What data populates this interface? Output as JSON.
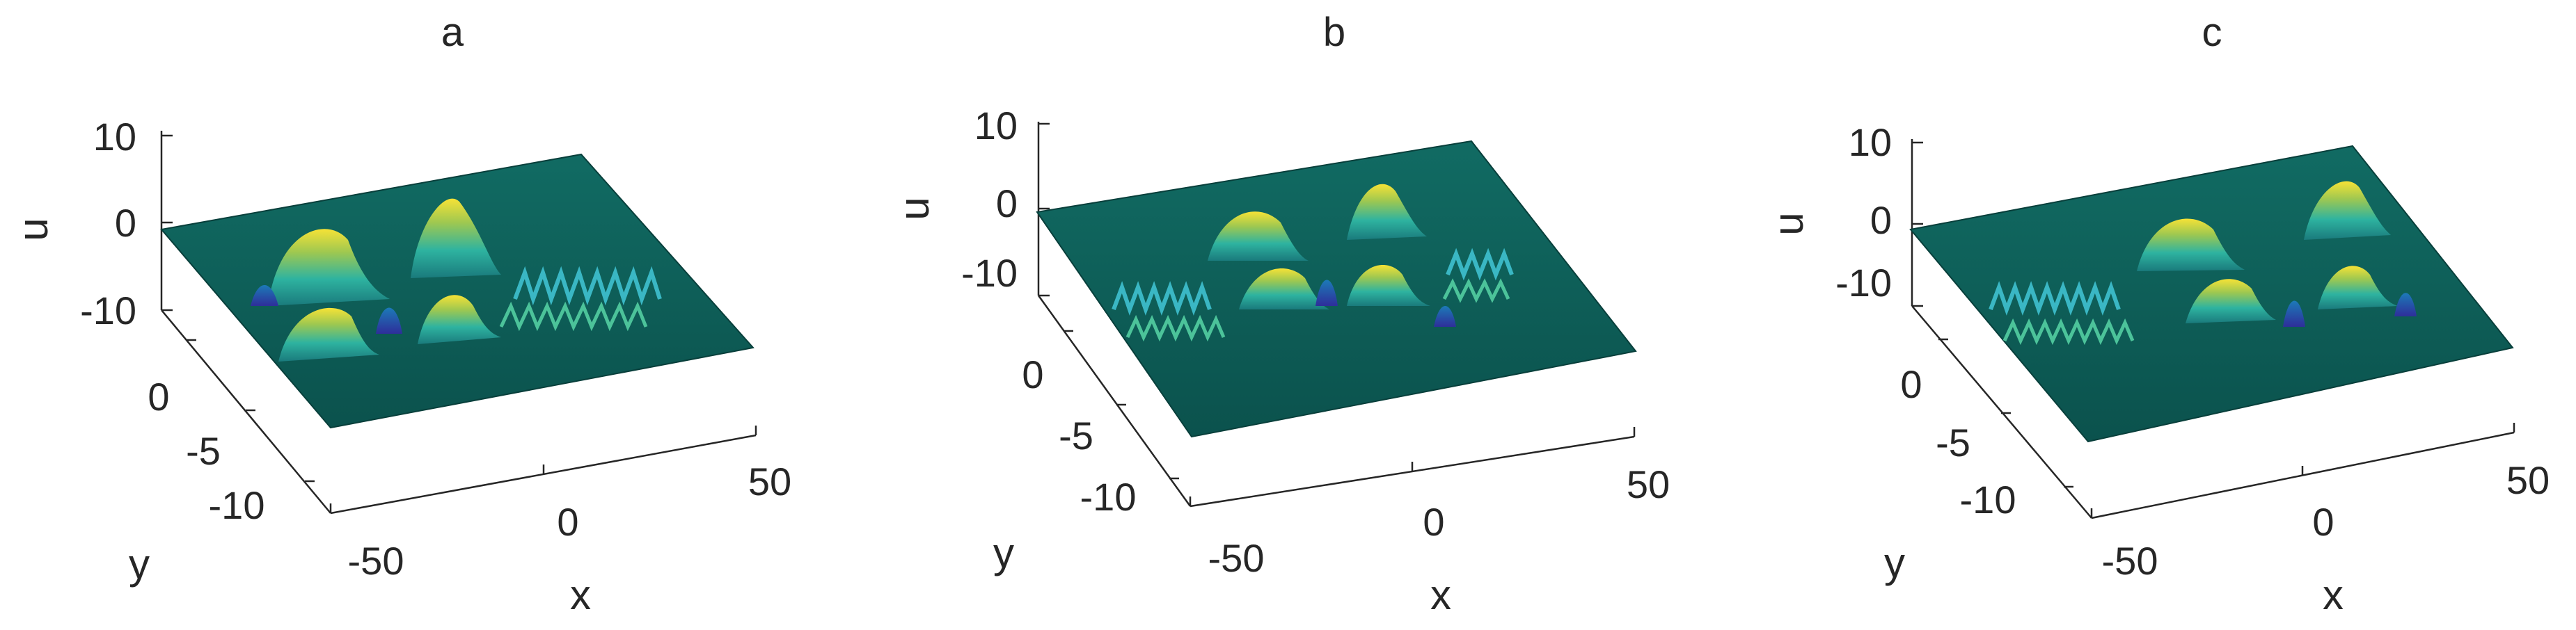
{
  "panels": [
    {
      "title": "a",
      "xlabel": "x",
      "ylabel": "y",
      "zlabel": "u",
      "xticks": [
        "-50",
        "0",
        "50"
      ],
      "yticks": [
        "0",
        "-5",
        "-10"
      ],
      "zticks": [
        "10",
        "0",
        "-10"
      ]
    },
    {
      "title": "b",
      "xlabel": "x",
      "ylabel": "y",
      "zlabel": "u",
      "xticks": [
        "-50",
        "0",
        "50"
      ],
      "yticks": [
        "0",
        "-5",
        "-10"
      ],
      "zticks": [
        "10",
        "0",
        "-10"
      ]
    },
    {
      "title": "c",
      "xlabel": "x",
      "ylabel": "y",
      "zlabel": "u",
      "xticks": [
        "-50",
        "0",
        "50"
      ],
      "yticks": [
        "0",
        "-5",
        "-10"
      ],
      "zticks": [
        "10",
        "0",
        "-10"
      ]
    }
  ],
  "chart_data": [
    {
      "type": "surface",
      "title": "a",
      "xlabel": "x",
      "ylabel": "y",
      "zlabel": "u",
      "xlim": [
        -60,
        60
      ],
      "ylim": [
        -13,
        5
      ],
      "zlim": [
        -10,
        10
      ],
      "colormap": "parula",
      "surface_color": "#0d5c56",
      "features": [
        {
          "kind": "hump",
          "x": -22,
          "y": 1.2,
          "z": 6
        },
        {
          "kind": "hump",
          "x": 2,
          "y": 1.2,
          "z": 7
        },
        {
          "kind": "hump",
          "x": -18,
          "y": -1.2,
          "z": 5
        },
        {
          "kind": "hump",
          "x": 8,
          "y": -1.2,
          "z": 5.5
        },
        {
          "kind": "dip",
          "x": -10,
          "y": 0,
          "z": -5
        },
        {
          "kind": "ripple-train",
          "x_start": 18,
          "x_end": 52,
          "z": 2.5
        }
      ]
    },
    {
      "type": "surface",
      "title": "b",
      "xlabel": "x",
      "ylabel": "y",
      "zlabel": "u",
      "xlim": [
        -60,
        60
      ],
      "ylim": [
        -13,
        5
      ],
      "zlim": [
        -10,
        10
      ],
      "colormap": "parula",
      "surface_color": "#0d5c56",
      "features": [
        {
          "kind": "hump",
          "x": -8,
          "y": 1.2,
          "z": 6
        },
        {
          "kind": "hump",
          "x": 14,
          "y": 1.2,
          "z": 7
        },
        {
          "kind": "hump",
          "x": -4,
          "y": -1.2,
          "z": 5
        },
        {
          "kind": "hump",
          "x": 20,
          "y": -1.2,
          "z": 5.5
        },
        {
          "kind": "dip",
          "x": 4,
          "y": 0,
          "z": -5
        },
        {
          "kind": "ripple-train",
          "x_start": -45,
          "x_end": -18,
          "z": 2
        },
        {
          "kind": "ripple-train",
          "x_start": 28,
          "x_end": 50,
          "z": 2
        }
      ]
    },
    {
      "type": "surface",
      "title": "c",
      "xlabel": "x",
      "ylabel": "y",
      "zlabel": "u",
      "xlim": [
        -60,
        60
      ],
      "ylim": [
        -13,
        5
      ],
      "zlim": [
        -10,
        10
      ],
      "colormap": "parula",
      "surface_color": "#0d5c56",
      "features": [
        {
          "kind": "hump",
          "x": 6,
          "y": 1.2,
          "z": 6
        },
        {
          "kind": "hump",
          "x": 30,
          "y": 1.2,
          "z": 7
        },
        {
          "kind": "hump",
          "x": 10,
          "y": -1.2,
          "z": 5
        },
        {
          "kind": "hump",
          "x": 34,
          "y": -1.2,
          "z": 5.5
        },
        {
          "kind": "dip",
          "x": 18,
          "y": 0,
          "z": -5
        },
        {
          "kind": "ripple-train",
          "x_start": -48,
          "x_end": -5,
          "z": 2.5
        }
      ]
    }
  ]
}
